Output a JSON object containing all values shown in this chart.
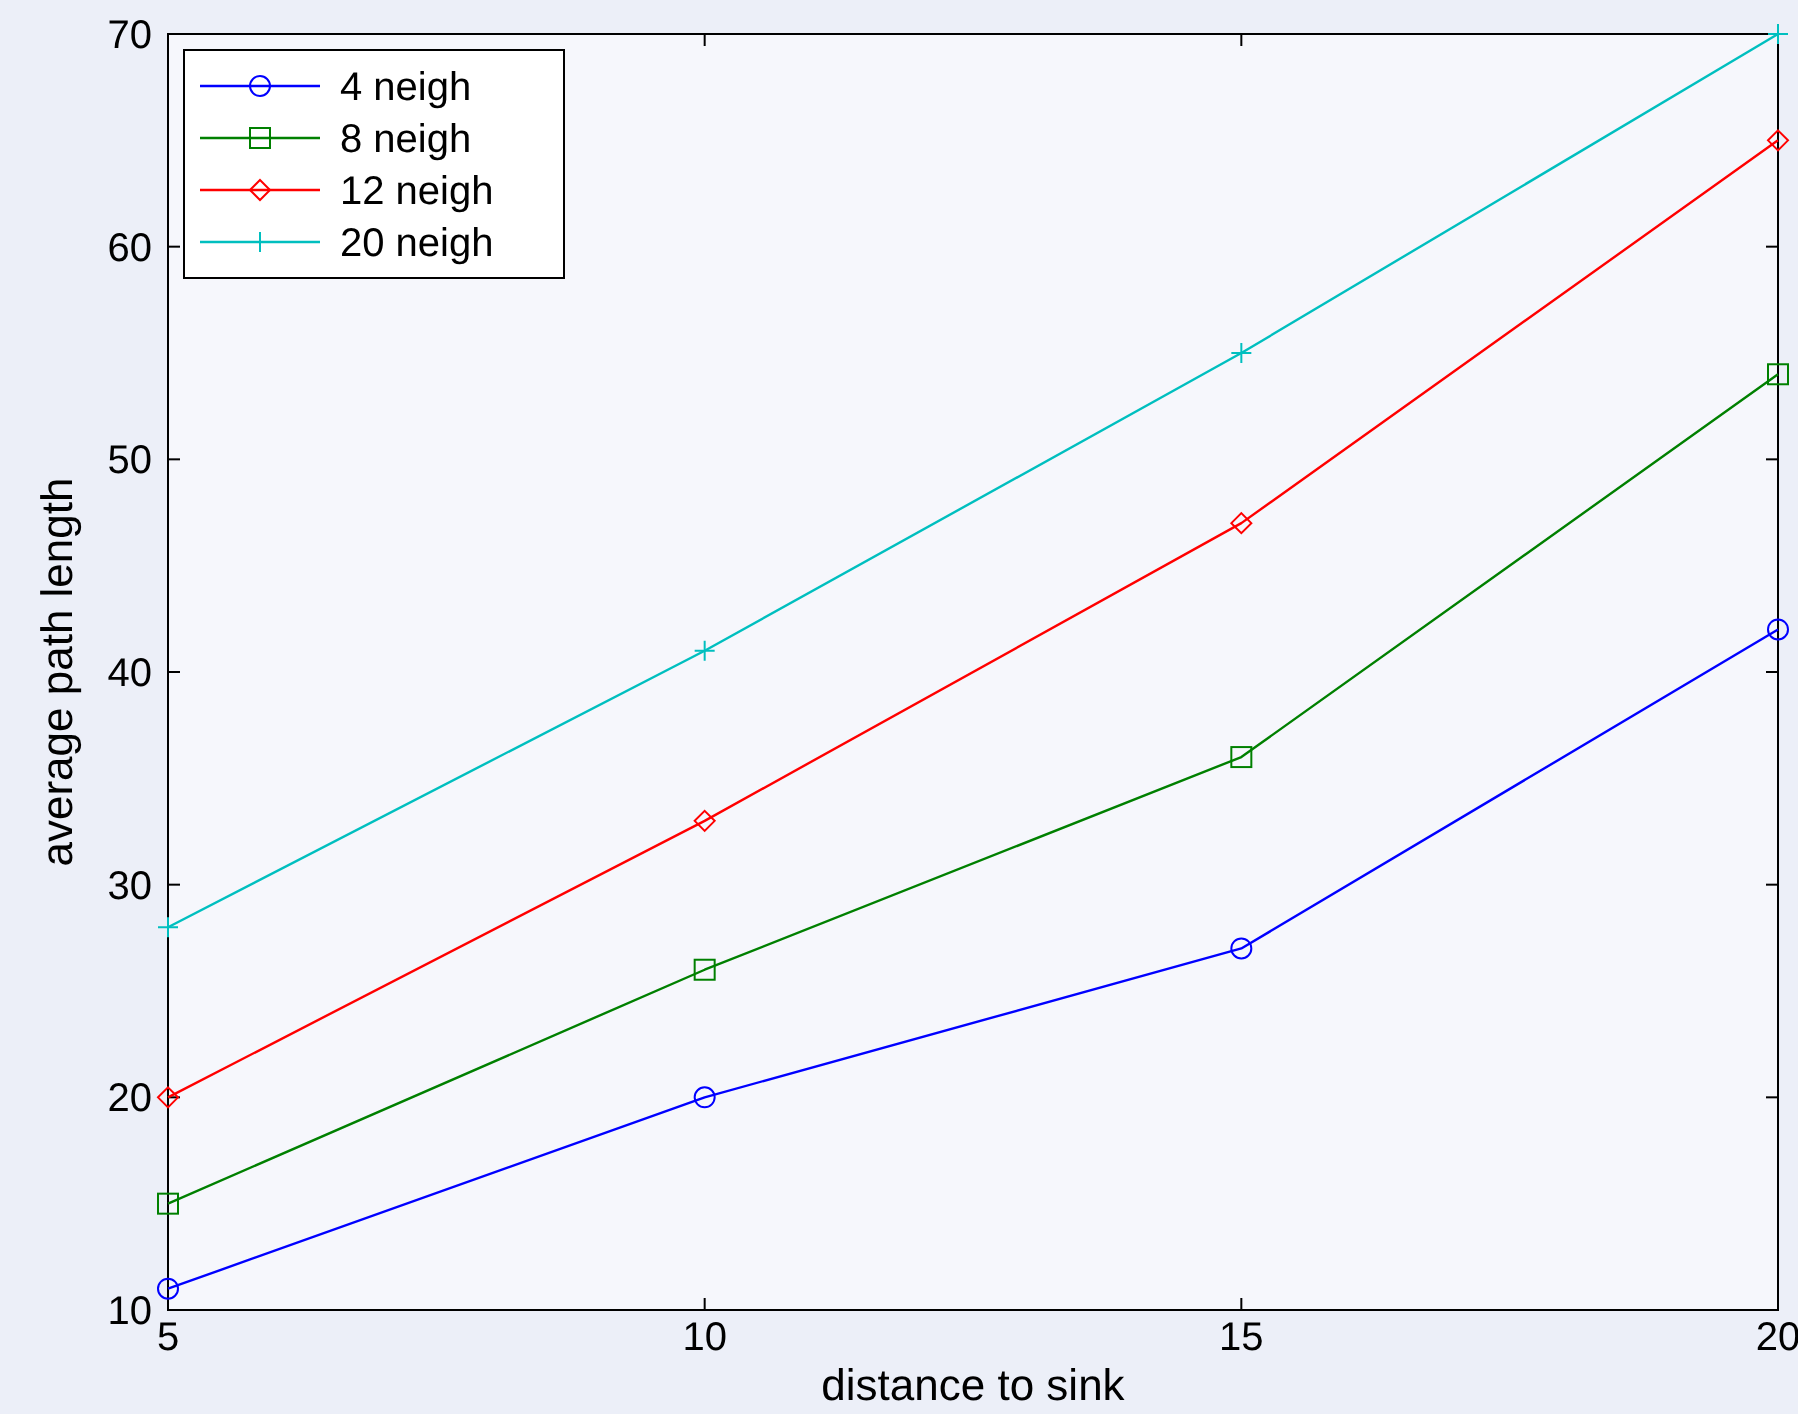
{
  "chart_data": {
    "type": "line",
    "xlabel": "distance to sink",
    "ylabel": "average path length",
    "x": [
      5,
      10,
      15,
      20
    ],
    "xlim": [
      5,
      20
    ],
    "xticks": [
      5,
      10,
      15,
      20
    ],
    "ylim": [
      10,
      70
    ],
    "yticks": [
      10,
      20,
      30,
      40,
      50,
      60,
      70
    ],
    "grid": false,
    "legend": "top left",
    "line_style": "solid",
    "series": [
      {
        "name": "4 neigh",
        "color": "#0000ff",
        "marker": "circle",
        "values": [
          11,
          20,
          27,
          42
        ]
      },
      {
        "name": "8 neigh",
        "color": "#008000",
        "marker": "square",
        "values": [
          15,
          26,
          36,
          54
        ]
      },
      {
        "name": "12 neigh",
        "color": "#ff0000",
        "marker": "diamond",
        "values": [
          20,
          33,
          47,
          65
        ]
      },
      {
        "name": "20 neigh",
        "color": "#00bfbf",
        "marker": "cross",
        "values": [
          28,
          41,
          55,
          70
        ]
      }
    ]
  }
}
